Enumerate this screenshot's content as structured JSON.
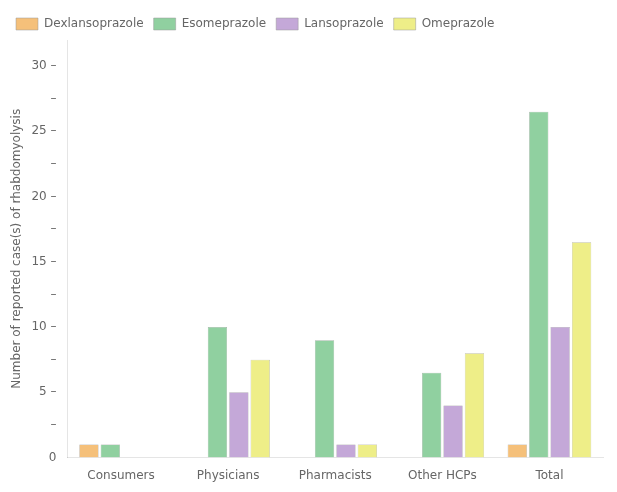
{
  "chart_data": {
    "type": "bar",
    "categories": [
      "Consumers",
      "Physicians",
      "Pharmacists",
      "Other HCPs",
      "Total"
    ],
    "series": [
      {
        "name": "Dexlansoprazole",
        "color": "#F5C07A",
        "values": [
          1,
          0,
          0,
          0,
          1
        ]
      },
      {
        "name": "Esomeprazole",
        "color": "#90D0A0",
        "values": [
          1,
          10,
          9,
          6.5,
          26.5
        ]
      },
      {
        "name": "Lansoprazole",
        "color": "#C4A8D8",
        "values": [
          0,
          5,
          1,
          4,
          10
        ]
      },
      {
        "name": "Omeprazole",
        "color": "#EEEE88",
        "values": [
          0,
          7.5,
          1,
          8,
          16.5
        ]
      }
    ],
    "y_label": "Number of reported case(s) of rhabdomyolysis",
    "ylim": [
      0,
      32
    ],
    "yticks": [
      0,
      {
        "value": 2.5,
        "label": "–"
      },
      {
        "value": 5,
        "label": "5 –"
      },
      {
        "value": 7.5,
        "label": "–"
      },
      {
        "value": 10,
        "label": "10 –"
      },
      {
        "value": 12.5,
        "label": "–"
      },
      {
        "value": 15,
        "label": "15 –"
      },
      {
        "value": 17.5,
        "label": "–"
      },
      {
        "value": 20,
        "label": "20 –"
      },
      {
        "value": 22.5,
        "label": "–"
      },
      {
        "value": 25,
        "label": "25 –"
      },
      {
        "value": 27.5,
        "label": "–"
      },
      {
        "value": 30,
        "label": "30 –"
      }
    ],
    "grid": false,
    "legend": "upper left"
  }
}
